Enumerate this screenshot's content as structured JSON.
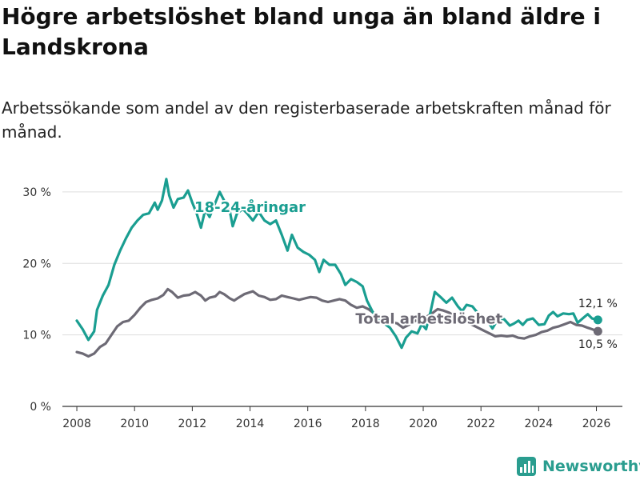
{
  "title": "Högre arbetslöshet bland unga än bland äldre i Landskrona",
  "subtitle": "Arbetssökande som andel av den registerbaserade arbetskraften månad för månad.",
  "brand": {
    "name": "Newsworthy",
    "color": "#2a9d8f"
  },
  "chart_data": {
    "type": "line",
    "xlim": [
      2007.5,
      2026.9
    ],
    "ylim": [
      0,
      32
    ],
    "x_ticks": [
      2008,
      2010,
      2012,
      2014,
      2016,
      2018,
      2020,
      2022,
      2024,
      2026
    ],
    "y_ticks": [
      {
        "value": 0,
        "label": "0 %"
      },
      {
        "value": 10,
        "label": "10 %"
      },
      {
        "value": 20,
        "label": "20 %"
      },
      {
        "value": 30,
        "label": "30 %"
      }
    ],
    "grid": true,
    "series": [
      {
        "name": "18-24-åringar",
        "label": "18-24-åringar",
        "color": "#1a9e91",
        "end_label": "12,1 %",
        "points": [
          [
            2008.0,
            12.0
          ],
          [
            2008.2,
            10.8
          ],
          [
            2008.4,
            9.3
          ],
          [
            2008.6,
            10.5
          ],
          [
            2008.7,
            13.5
          ],
          [
            2008.9,
            15.5
          ],
          [
            2009.1,
            17.0
          ],
          [
            2009.3,
            19.8
          ],
          [
            2009.5,
            21.8
          ],
          [
            2009.7,
            23.5
          ],
          [
            2009.9,
            25.0
          ],
          [
            2010.1,
            26.0
          ],
          [
            2010.3,
            26.8
          ],
          [
            2010.5,
            27.0
          ],
          [
            2010.7,
            28.5
          ],
          [
            2010.8,
            27.5
          ],
          [
            2010.95,
            28.8
          ],
          [
            2011.1,
            31.8
          ],
          [
            2011.2,
            29.5
          ],
          [
            2011.35,
            27.8
          ],
          [
            2011.5,
            29.0
          ],
          [
            2011.7,
            29.2
          ],
          [
            2011.85,
            30.2
          ],
          [
            2012.0,
            28.5
          ],
          [
            2012.15,
            27.0
          ],
          [
            2012.3,
            25.0
          ],
          [
            2012.45,
            27.5
          ],
          [
            2012.6,
            26.5
          ],
          [
            2012.75,
            28.0
          ],
          [
            2012.95,
            30.0
          ],
          [
            2013.1,
            28.8
          ],
          [
            2013.3,
            27.3
          ],
          [
            2013.4,
            25.2
          ],
          [
            2013.55,
            27.0
          ],
          [
            2013.75,
            27.6
          ],
          [
            2013.9,
            27.0
          ],
          [
            2014.1,
            26.0
          ],
          [
            2014.3,
            27.2
          ],
          [
            2014.5,
            26.0
          ],
          [
            2014.7,
            25.5
          ],
          [
            2014.9,
            26.0
          ],
          [
            2015.1,
            24.0
          ],
          [
            2015.3,
            21.8
          ],
          [
            2015.45,
            24.0
          ],
          [
            2015.65,
            22.2
          ],
          [
            2015.85,
            21.6
          ],
          [
            2016.05,
            21.2
          ],
          [
            2016.25,
            20.5
          ],
          [
            2016.4,
            18.8
          ],
          [
            2016.55,
            20.5
          ],
          [
            2016.75,
            19.8
          ],
          [
            2016.95,
            19.8
          ],
          [
            2017.15,
            18.5
          ],
          [
            2017.3,
            17.0
          ],
          [
            2017.5,
            17.8
          ],
          [
            2017.7,
            17.4
          ],
          [
            2017.9,
            16.8
          ],
          [
            2018.05,
            14.8
          ],
          [
            2018.25,
            13.2
          ],
          [
            2018.45,
            12.2
          ],
          [
            2018.65,
            11.6
          ],
          [
            2018.85,
            11.0
          ],
          [
            2019.05,
            9.8
          ],
          [
            2019.25,
            8.2
          ],
          [
            2019.4,
            9.6
          ],
          [
            2019.6,
            10.5
          ],
          [
            2019.8,
            10.2
          ],
          [
            2019.95,
            11.5
          ],
          [
            2020.1,
            10.8
          ],
          [
            2020.25,
            13.2
          ],
          [
            2020.4,
            16.0
          ],
          [
            2020.6,
            15.3
          ],
          [
            2020.8,
            14.5
          ],
          [
            2021.0,
            15.2
          ],
          [
            2021.2,
            14.0
          ],
          [
            2021.35,
            13.3
          ],
          [
            2021.5,
            14.2
          ],
          [
            2021.7,
            14.0
          ],
          [
            2021.9,
            13.0
          ],
          [
            2022.05,
            12.6
          ],
          [
            2022.25,
            11.8
          ],
          [
            2022.4,
            10.9
          ],
          [
            2022.6,
            12.3
          ],
          [
            2022.8,
            12.2
          ],
          [
            2023.0,
            11.3
          ],
          [
            2023.15,
            11.6
          ],
          [
            2023.3,
            12.0
          ],
          [
            2023.45,
            11.4
          ],
          [
            2023.6,
            12.1
          ],
          [
            2023.8,
            12.3
          ],
          [
            2024.0,
            11.4
          ],
          [
            2024.2,
            11.5
          ],
          [
            2024.35,
            12.7
          ],
          [
            2024.5,
            13.2
          ],
          [
            2024.65,
            12.6
          ],
          [
            2024.85,
            13.0
          ],
          [
            2025.05,
            12.9
          ],
          [
            2025.2,
            13.0
          ],
          [
            2025.35,
            11.7
          ],
          [
            2025.55,
            12.4
          ],
          [
            2025.7,
            12.9
          ],
          [
            2025.85,
            12.3
          ],
          [
            2026.05,
            12.1
          ]
        ]
      },
      {
        "name": "Total arbetslöshet",
        "label": "Total arbetslöshet",
        "color": "#6d6a75",
        "end_label": "10,5 %",
        "points": [
          [
            2008.0,
            7.6
          ],
          [
            2008.2,
            7.4
          ],
          [
            2008.4,
            7.0
          ],
          [
            2008.6,
            7.4
          ],
          [
            2008.8,
            8.3
          ],
          [
            2009.0,
            8.8
          ],
          [
            2009.2,
            10.0
          ],
          [
            2009.4,
            11.2
          ],
          [
            2009.6,
            11.8
          ],
          [
            2009.8,
            12.0
          ],
          [
            2010.0,
            12.8
          ],
          [
            2010.2,
            13.8
          ],
          [
            2010.4,
            14.6
          ],
          [
            2010.6,
            14.9
          ],
          [
            2010.8,
            15.1
          ],
          [
            2011.0,
            15.6
          ],
          [
            2011.15,
            16.4
          ],
          [
            2011.3,
            16.0
          ],
          [
            2011.5,
            15.2
          ],
          [
            2011.7,
            15.5
          ],
          [
            2011.9,
            15.6
          ],
          [
            2012.1,
            16.0
          ],
          [
            2012.3,
            15.5
          ],
          [
            2012.45,
            14.8
          ],
          [
            2012.6,
            15.2
          ],
          [
            2012.8,
            15.4
          ],
          [
            2012.95,
            16.0
          ],
          [
            2013.1,
            15.7
          ],
          [
            2013.3,
            15.1
          ],
          [
            2013.45,
            14.8
          ],
          [
            2013.6,
            15.2
          ],
          [
            2013.8,
            15.7
          ],
          [
            2013.95,
            15.9
          ],
          [
            2014.1,
            16.1
          ],
          [
            2014.3,
            15.5
          ],
          [
            2014.5,
            15.3
          ],
          [
            2014.7,
            14.9
          ],
          [
            2014.9,
            15.0
          ],
          [
            2015.1,
            15.5
          ],
          [
            2015.3,
            15.3
          ],
          [
            2015.5,
            15.1
          ],
          [
            2015.7,
            14.9
          ],
          [
            2015.9,
            15.1
          ],
          [
            2016.1,
            15.3
          ],
          [
            2016.3,
            15.2
          ],
          [
            2016.5,
            14.8
          ],
          [
            2016.7,
            14.6
          ],
          [
            2016.9,
            14.8
          ],
          [
            2017.1,
            15.0
          ],
          [
            2017.3,
            14.8
          ],
          [
            2017.5,
            14.2
          ],
          [
            2017.7,
            13.8
          ],
          [
            2017.9,
            14.0
          ],
          [
            2018.1,
            13.6
          ],
          [
            2018.3,
            13.0
          ],
          [
            2018.5,
            12.5
          ],
          [
            2018.7,
            12.0
          ],
          [
            2018.9,
            11.8
          ],
          [
            2019.1,
            11.6
          ],
          [
            2019.3,
            11.0
          ],
          [
            2019.5,
            11.4
          ],
          [
            2019.7,
            11.9
          ],
          [
            2019.9,
            12.3
          ],
          [
            2020.1,
            12.5
          ],
          [
            2020.3,
            13.0
          ],
          [
            2020.5,
            13.6
          ],
          [
            2020.7,
            13.4
          ],
          [
            2020.9,
            13.1
          ],
          [
            2021.1,
            12.6
          ],
          [
            2021.3,
            12.2
          ],
          [
            2021.5,
            11.8
          ],
          [
            2021.7,
            11.4
          ],
          [
            2021.9,
            11.0
          ],
          [
            2022.1,
            10.6
          ],
          [
            2022.3,
            10.2
          ],
          [
            2022.5,
            9.8
          ],
          [
            2022.7,
            9.9
          ],
          [
            2022.9,
            9.8
          ],
          [
            2023.1,
            9.9
          ],
          [
            2023.3,
            9.6
          ],
          [
            2023.5,
            9.5
          ],
          [
            2023.7,
            9.8
          ],
          [
            2023.9,
            10.0
          ],
          [
            2024.1,
            10.4
          ],
          [
            2024.3,
            10.6
          ],
          [
            2024.5,
            11.0
          ],
          [
            2024.7,
            11.2
          ],
          [
            2024.9,
            11.5
          ],
          [
            2025.1,
            11.8
          ],
          [
            2025.3,
            11.4
          ],
          [
            2025.5,
            11.3
          ],
          [
            2025.7,
            11.0
          ],
          [
            2025.85,
            10.8
          ],
          [
            2026.05,
            10.5
          ]
        ]
      }
    ]
  }
}
